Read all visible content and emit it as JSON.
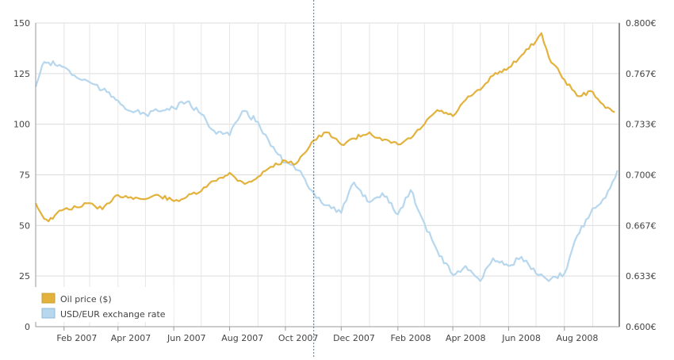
{
  "chart_data": {
    "type": "line",
    "x_ticks": [
      "Feb 2007",
      "Apr 2007",
      "Jun 2007",
      "Aug 2007",
      "Oct 2007",
      "Dec 2007",
      "Feb 2008",
      "Apr 2008",
      "Jun 2008",
      "Aug 2008"
    ],
    "y_left": {
      "ticks": [
        0,
        25,
        50,
        75,
        100,
        125,
        150
      ],
      "ylim": [
        0,
        150
      ]
    },
    "y_right": {
      "ticks": [
        "0.600€",
        "0.633€",
        "0.667€",
        "0.700€",
        "0.733€",
        "0.767€",
        "0.800€"
      ],
      "ylim": [
        0.6,
        0.8
      ]
    },
    "grid": true,
    "legend_position": "bottom-left",
    "crosshair_x": "2007-11-01",
    "x_domain": [
      "2007-01-01",
      "2008-09-30"
    ],
    "series": [
      {
        "name": "Oil price ($)",
        "axis": "left",
        "color": "#e3b23c",
        "points": [
          [
            "2007-01-01",
            61
          ],
          [
            "2007-01-08",
            55
          ],
          [
            "2007-01-15",
            52
          ],
          [
            "2007-01-22",
            55
          ],
          [
            "2007-02-01",
            58
          ],
          [
            "2007-02-15",
            59
          ],
          [
            "2007-03-01",
            61
          ],
          [
            "2007-03-15",
            58
          ],
          [
            "2007-03-25",
            62
          ],
          [
            "2007-04-01",
            65
          ],
          [
            "2007-04-15",
            64
          ],
          [
            "2007-05-01",
            63
          ],
          [
            "2007-05-15",
            65
          ],
          [
            "2007-06-01",
            62
          ],
          [
            "2007-06-15",
            64
          ],
          [
            "2007-07-01",
            67
          ],
          [
            "2007-07-15",
            72
          ],
          [
            "2007-08-01",
            76
          ],
          [
            "2007-08-10",
            72
          ],
          [
            "2007-08-20",
            71
          ],
          [
            "2007-09-01",
            74
          ],
          [
            "2007-09-15",
            79
          ],
          [
            "2007-10-01",
            82
          ],
          [
            "2007-10-10",
            80
          ],
          [
            "2007-10-20",
            85
          ],
          [
            "2007-11-01",
            92
          ],
          [
            "2007-11-15",
            96
          ],
          [
            "2007-12-01",
            90
          ],
          [
            "2007-12-15",
            93
          ],
          [
            "2008-01-01",
            96
          ],
          [
            "2008-01-15",
            92
          ],
          [
            "2008-02-01",
            90
          ],
          [
            "2008-02-15",
            93
          ],
          [
            "2008-03-01",
            100
          ],
          [
            "2008-03-15",
            107
          ],
          [
            "2008-04-01",
            104
          ],
          [
            "2008-04-15",
            112
          ],
          [
            "2008-05-01",
            117
          ],
          [
            "2008-05-15",
            124
          ],
          [
            "2008-06-01",
            128
          ],
          [
            "2008-06-15",
            134
          ],
          [
            "2008-07-01",
            141
          ],
          [
            "2008-07-07",
            145
          ],
          [
            "2008-07-15",
            133
          ],
          [
            "2008-08-01",
            122
          ],
          [
            "2008-08-15",
            114
          ],
          [
            "2008-09-01",
            116
          ],
          [
            "2008-09-15",
            108
          ],
          [
            "2008-09-25",
            106
          ]
        ]
      },
      {
        "name": "USD/EUR exchange rate",
        "axis": "right",
        "color": "#b6d7ee",
        "points": [
          [
            "2007-01-01",
            0.758
          ],
          [
            "2007-01-08",
            0.772
          ],
          [
            "2007-01-15",
            0.774
          ],
          [
            "2007-02-01",
            0.771
          ],
          [
            "2007-02-15",
            0.764
          ],
          [
            "2007-03-01",
            0.761
          ],
          [
            "2007-03-15",
            0.756
          ],
          [
            "2007-04-01",
            0.749
          ],
          [
            "2007-04-15",
            0.742
          ],
          [
            "2007-05-01",
            0.74
          ],
          [
            "2007-05-15",
            0.742
          ],
          [
            "2007-06-01",
            0.744
          ],
          [
            "2007-06-15",
            0.748
          ],
          [
            "2007-07-01",
            0.74
          ],
          [
            "2007-07-15",
            0.729
          ],
          [
            "2007-08-01",
            0.726
          ],
          [
            "2007-08-15",
            0.742
          ],
          [
            "2007-09-01",
            0.735
          ],
          [
            "2007-09-15",
            0.719
          ],
          [
            "2007-10-01",
            0.708
          ],
          [
            "2007-10-15",
            0.703
          ],
          [
            "2007-11-01",
            0.688
          ],
          [
            "2007-11-15",
            0.68
          ],
          [
            "2007-12-01",
            0.675
          ],
          [
            "2007-12-15",
            0.695
          ],
          [
            "2008-01-01",
            0.682
          ],
          [
            "2008-01-15",
            0.688
          ],
          [
            "2008-02-01",
            0.674
          ],
          [
            "2008-02-15",
            0.69
          ],
          [
            "2008-03-01",
            0.668
          ],
          [
            "2008-03-15",
            0.65
          ],
          [
            "2008-04-01",
            0.634
          ],
          [
            "2008-04-15",
            0.64
          ],
          [
            "2008-05-01",
            0.63
          ],
          [
            "2008-05-15",
            0.645
          ],
          [
            "2008-06-01",
            0.64
          ],
          [
            "2008-06-15",
            0.646
          ],
          [
            "2008-07-01",
            0.635
          ],
          [
            "2008-07-15",
            0.63
          ],
          [
            "2008-08-01",
            0.635
          ],
          [
            "2008-08-15",
            0.66
          ],
          [
            "2008-09-01",
            0.678
          ],
          [
            "2008-09-15",
            0.685
          ],
          [
            "2008-09-28",
            0.703
          ]
        ]
      }
    ]
  }
}
